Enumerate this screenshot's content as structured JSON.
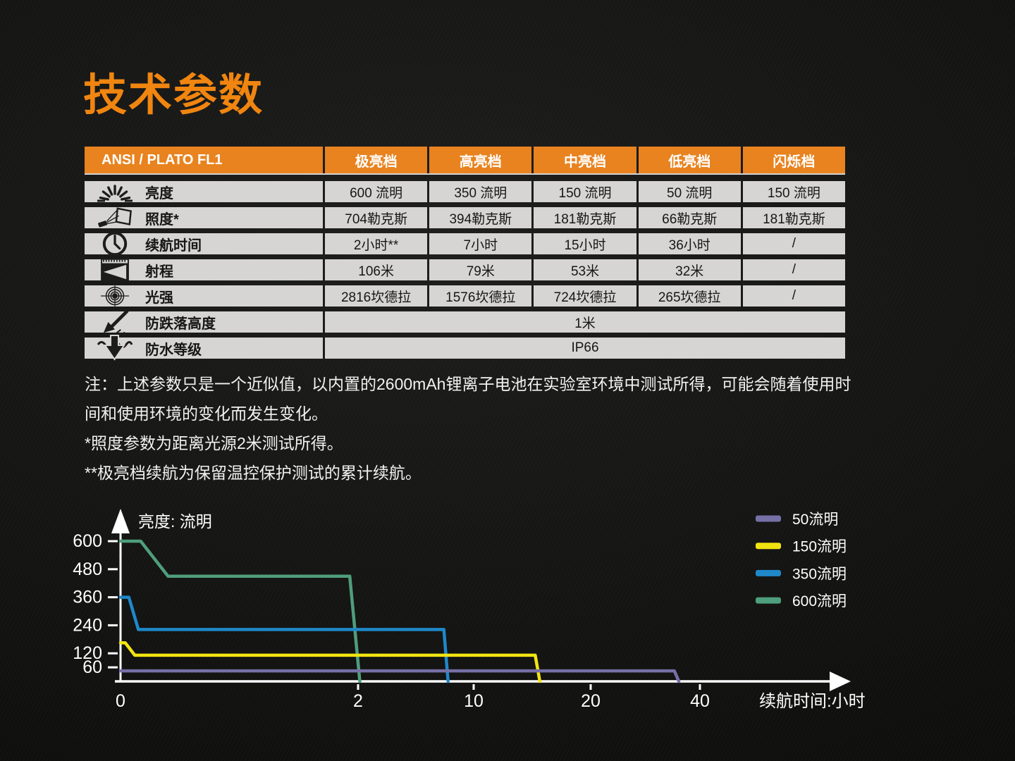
{
  "page": {
    "title": "技术参数"
  },
  "table": {
    "header": {
      "label": "ANSI / PLATO FL1",
      "columns": [
        "极亮档",
        "高亮档",
        "中亮档",
        "低亮档",
        "闪烁档"
      ]
    },
    "rows": [
      {
        "icon": "brightness-icon",
        "label": "亮度",
        "values": [
          "600 流明",
          "350 流明",
          "150 流明",
          "50 流明",
          "150 流明"
        ]
      },
      {
        "icon": "illuminance-icon",
        "label": "照度*",
        "values": [
          "704勒克斯",
          "394勒克斯",
          "181勒克斯",
          "66勒克斯",
          "181勒克斯"
        ]
      },
      {
        "icon": "runtime-icon",
        "label": "续航时间",
        "values": [
          "2小时**",
          "7小时",
          "15小时",
          "36小时",
          "/"
        ]
      },
      {
        "icon": "beam-distance-icon",
        "label": "射程",
        "values": [
          "106米",
          "79米",
          "53米",
          "32米",
          "/"
        ]
      },
      {
        "icon": "intensity-icon",
        "label": "光强",
        "values": [
          "2816坎德拉",
          "1576坎德拉",
          "724坎德拉",
          "265坎德拉",
          "/"
        ]
      },
      {
        "icon": "impact-resistance-icon",
        "label": "防跌落高度",
        "merged": "1米"
      },
      {
        "icon": "waterproof-icon",
        "label": "防水等级",
        "merged": "IP66"
      }
    ]
  },
  "notes": {
    "general": "注：上述参数只是一个近似值，以内置的2600mAh锂离子电池在实验室环境中测试所得，可能会随着使用时间和使用环境的变化而发生变化。",
    "illuminance_note": "*照度参数为距离光源2米测试所得。",
    "turbo_runtime_note": "**极亮档续航为保留温控保护测试的累计续航。"
  },
  "chart_data": {
    "type": "line",
    "title": "",
    "ylabel": "亮度: 流明",
    "xlabel": "续航时间:小时",
    "y_ticks": [
      600,
      480,
      360,
      240,
      120,
      60
    ],
    "x_ticks": [
      0,
      2,
      10,
      20,
      40
    ],
    "ylim": [
      0,
      620
    ],
    "xlim": [
      0,
      44
    ],
    "grid": false,
    "legend_position": "top-right",
    "x_scale": "linear 0-2, logarithmic 2-40",
    "series": [
      {
        "name": "50流明",
        "color": "#7670a6",
        "points": [
          [
            0,
            45
          ],
          [
            34,
            45
          ],
          [
            35,
            0
          ]
        ]
      },
      {
        "name": "150流明",
        "color": "#f2e411",
        "points": [
          [
            0,
            165
          ],
          [
            0.04,
            165
          ],
          [
            0.12,
            112
          ],
          [
            14.4,
            112
          ],
          [
            14.8,
            0
          ]
        ]
      },
      {
        "name": "350流明",
        "color": "#1f88c9",
        "points": [
          [
            0,
            360
          ],
          [
            0.07,
            360
          ],
          [
            0.15,
            222
          ],
          [
            6.6,
            222
          ],
          [
            7,
            0
          ]
        ]
      },
      {
        "name": "600流明",
        "color": "#4f9e7c",
        "points": [
          [
            0,
            600
          ],
          [
            0.17,
            600
          ],
          [
            0.4,
            450
          ],
          [
            1.93,
            450
          ],
          [
            2.05,
            0
          ]
        ]
      }
    ]
  }
}
